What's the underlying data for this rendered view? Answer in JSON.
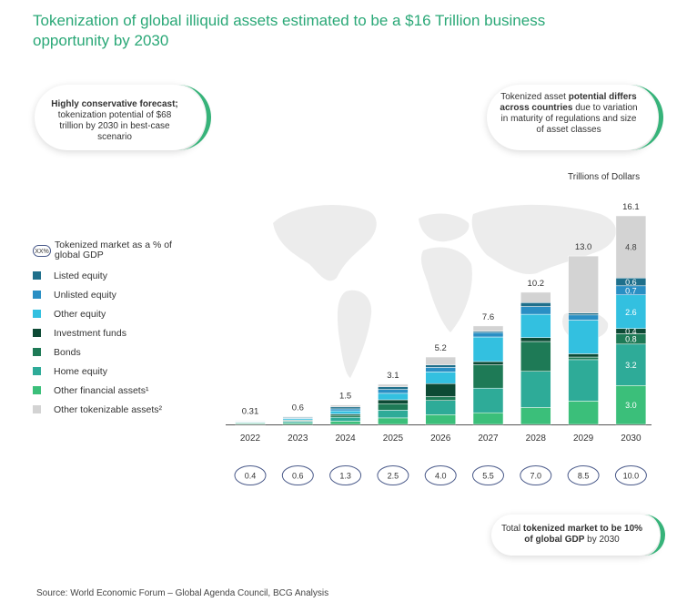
{
  "title": "Tokenization of global illiquid assets estimated to be a $16 Trillion business opportunity by 2030",
  "callouts": {
    "left": {
      "bold": "Highly conservative forecast;",
      "rest": "tokenization potential of $68 trillion by 2030 in best-case scenario"
    },
    "right": {
      "pre": "Tokenized asset ",
      "bold": "potential differs across countries",
      "rest": " due to variation in maturity of regulations and size of asset classes"
    },
    "bottom": {
      "pre": "Total ",
      "bold1": "tokenized market to be 10% of global GDP",
      "rest": " by 2030"
    }
  },
  "units_label": "Trillions of Dollars",
  "source": "Source: World Economic Forum – Global Agenda Council, BCG Analysis",
  "legend": {
    "gdp_icon": "XX%",
    "gdp_label": "Tokenized market as a % of global GDP",
    "items": [
      {
        "label": "Listed equity",
        "color": "#1f6f8b"
      },
      {
        "label": "Unlisted equity",
        "color": "#2a8fc4"
      },
      {
        "label": "Other equity",
        "color": "#33c0e0"
      },
      {
        "label": "Investment funds",
        "color": "#0d4a35"
      },
      {
        "label": "Bonds",
        "color": "#1e7a56"
      },
      {
        "label": "Home equity",
        "color": "#2eab98"
      },
      {
        "label": "Other financial assets¹",
        "color": "#3bbf7a"
      },
      {
        "label": "Other tokenizable assets²",
        "color": "#d3d3d3"
      }
    ]
  },
  "chart_data": {
    "type": "bar",
    "stacked": true,
    "categories": [
      "2022",
      "2023",
      "2024",
      "2025",
      "2026",
      "2027",
      "2028",
      "2029",
      "2030"
    ],
    "totals": [
      "0.31",
      "0.6",
      "1.5",
      "3.1",
      "5.2",
      "7.6",
      "10.2",
      "13.0",
      "16.1"
    ],
    "gdp_percent": [
      "0.4",
      "0.6",
      "1.3",
      "2.5",
      "4.0",
      "5.5",
      "7.0",
      "8.5",
      "10.0"
    ],
    "series_order_bottom_to_top": [
      "Other financial assets¹",
      "Home equity",
      "Bonds",
      "Investment funds",
      "Other equity",
      "Unlisted equity",
      "Listed equity",
      "Other tokenizable assets²"
    ],
    "series": [
      {
        "name": "Other financial assets¹",
        "values": [
          0.06,
          0.1,
          0.25,
          0.5,
          0.75,
          0.9,
          1.3,
          1.8,
          3.0
        ]
      },
      {
        "name": "Home equity",
        "values": [
          0.06,
          0.12,
          0.3,
          0.6,
          1.1,
          1.9,
          2.8,
          3.2,
          3.2
        ]
      },
      {
        "name": "Bonds",
        "values": [
          0.03,
          0.06,
          0.15,
          0.5,
          0.3,
          1.8,
          2.3,
          0.2,
          0.8
        ]
      },
      {
        "name": "Investment funds",
        "values": [
          0.02,
          0.05,
          0.1,
          0.3,
          1.0,
          0.25,
          0.3,
          0.25,
          0.4
        ]
      },
      {
        "name": "Other equity",
        "values": [
          0.04,
          0.1,
          0.25,
          0.5,
          0.9,
          1.9,
          1.8,
          2.6,
          2.6
        ]
      },
      {
        "name": "Unlisted equity",
        "values": [
          0.03,
          0.06,
          0.15,
          0.3,
          0.35,
          0.35,
          0.6,
          0.4,
          0.7
        ]
      },
      {
        "name": "Listed equity",
        "values": [
          0.03,
          0.06,
          0.15,
          0.2,
          0.2,
          0.1,
          0.3,
          0.15,
          0.6
        ]
      },
      {
        "name": "Other tokenizable assets²",
        "values": [
          0.04,
          0.05,
          0.15,
          0.2,
          0.6,
          0.4,
          0.8,
          4.4,
          4.8
        ]
      }
    ],
    "segment_labels_2030": {
      "Other financial assets¹": "3.0",
      "Home equity": "3.2",
      "Bonds": "0.8",
      "Investment funds": "0.4",
      "Other equity": "2.6",
      "Unlisted equity": "0.7",
      "Listed equity": "0.6",
      "Other tokenizable assets²": "4.8"
    },
    "ylim": [
      0,
      16.1
    ]
  }
}
